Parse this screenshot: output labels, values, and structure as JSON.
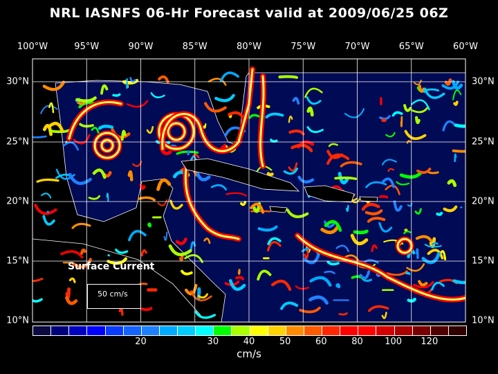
{
  "title": "NRL IASNFS  06-Hr Forecast valid at 2009/06/25 06Z",
  "lon_labels": [
    "100°W",
    "95°W",
    "90°W",
    "85°W",
    "80°W",
    "75°W",
    "70°W",
    "65°W",
    "60°W"
  ],
  "lat_labels": [
    "30°N",
    "25°N",
    "20°N",
    "15°N",
    "10°N"
  ],
  "map_label": "Surface Current",
  "reference_vector": "50 cm/s",
  "colorbar": {
    "unit": "cm/s",
    "labels": [
      "20",
      "30",
      "40",
      "50",
      "60",
      "80",
      "100",
      "120"
    ],
    "colors": [
      "#0a0a40",
      "#000078",
      "#0000c0",
      "#0000ff",
      "#0a3cff",
      "#1464ff",
      "#1e82ff",
      "#00aaff",
      "#00ccff",
      "#00ffff",
      "#00ff00",
      "#aaff00",
      "#ffff00",
      "#ffd200",
      "#ff8c00",
      "#ff5a00",
      "#ff2800",
      "#ff0000",
      "#ff0000",
      "#d20000",
      "#aa0000",
      "#780000",
      "#500000",
      "#300000"
    ]
  },
  "colors": {
    "ocean": "#000a55",
    "land": "#000000",
    "grid": "#ffffff"
  }
}
